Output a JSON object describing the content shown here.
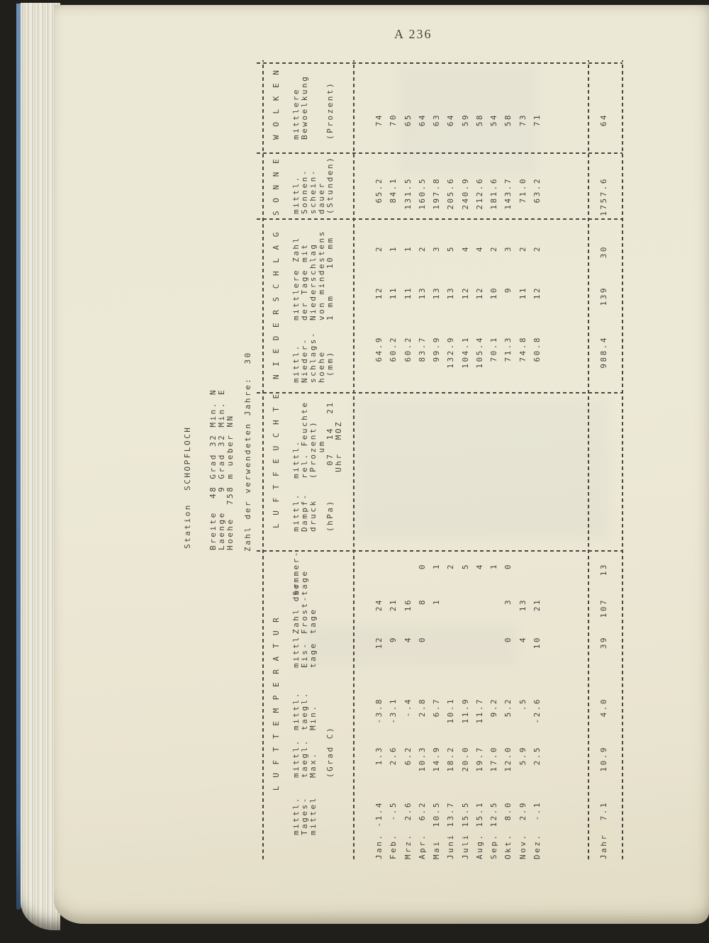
{
  "page_number": "A 236",
  "station": {
    "name_line": "Station  SCHOPFLOCH",
    "breite": "Breite  48 Grad 32 Min. N",
    "laenge": "Laenge   9 Grad 32 Min. E",
    "hoehe": "Hoehe  758 m ueber NN",
    "jahre": "Zahl der verwendeten Jahre:  30"
  },
  "table": {
    "groups": [
      "L U F T T E M P E R A T U R",
      "L U F T F E U C H T E",
      "N I E D E R S C H L A G",
      "S O N N E",
      "W O L K E N"
    ],
    "column_headers": [
      "mittl.\nTages-\nmittel",
      "mittl.\ntaegl.\nMax.\n\n(Grad C)",
      "mittl.\ntaegl.\nMin.",
      "mittl.\nEis-\ntage",
      "Zahl der\nFrost-\ntage",
      "Sommer-\ntage",
      "mittl.\nDampf-\ndruck\n\n(hPa)",
      "mittl.\nrel. Feuchte\n(Prozent)\n    um\n  07  14  21\n Uhr  MOZ",
      "mittl.\nNieder-\nschlags-\nhoehe\n (mm)",
      "mittlere Zahl\nder Tage mit\nNiederschlag\nvon mindestens\n1 mm    10 mm",
      "mittl.\nSonnen-\nschein-\ndauer\n(Stunden)",
      "mittlere\nBewoelkung\n\n\n(Prozent)"
    ],
    "rows": [
      {
        "label": "Jan.",
        "cells": [
          "-1.4",
          "1.3",
          "-3.8",
          "12",
          "24",
          "",
          "",
          "",
          "",
          "",
          "64.9",
          "12",
          "2",
          "65.2",
          "74"
        ]
      },
      {
        "label": "Feb.",
        "cells": [
          "-.5",
          "2.6",
          "-3.1",
          "9",
          "21",
          "",
          "",
          "",
          "",
          "",
          "60.2",
          "11",
          "1",
          "84.1",
          "70"
        ]
      },
      {
        "label": "Mrz.",
        "cells": [
          "2.6",
          "6.2",
          "-.4",
          "4",
          "16",
          "",
          "",
          "",
          "",
          "",
          "60.2",
          "11",
          "1",
          "131.5",
          "65"
        ]
      },
      {
        "label": "Apr.",
        "cells": [
          "6.2",
          "10.3",
          "2.8",
          "0",
          "8",
          "0",
          "",
          "",
          "",
          "",
          "83.7",
          "13",
          "2",
          "160.5",
          "64"
        ]
      },
      {
        "label": "Mai",
        "cells": [
          "10.5",
          "14.9",
          "6.7",
          "",
          "1",
          "1",
          "",
          "",
          "",
          "",
          "99.9",
          "13",
          "3",
          "197.8",
          "63"
        ]
      },
      {
        "label": "Juni",
        "cells": [
          "13.7",
          "18.2",
          "10.1",
          "",
          "",
          "2",
          "",
          "",
          "",
          "",
          "132.9",
          "13",
          "5",
          "205.6",
          "64"
        ]
      },
      {
        "label": "Juli",
        "cells": [
          "15.5",
          "20.0",
          "11.9",
          "",
          "",
          "5",
          "",
          "",
          "",
          "",
          "104.1",
          "12",
          "4",
          "240.9",
          "59"
        ]
      },
      {
        "label": "Aug.",
        "cells": [
          "15.1",
          "19.7",
          "11.7",
          "",
          "",
          "4",
          "",
          "",
          "",
          "",
          "105.4",
          "12",
          "4",
          "212.6",
          "58"
        ]
      },
      {
        "label": "Sep.",
        "cells": [
          "12.5",
          "17.0",
          "9.2",
          "",
          "",
          "1",
          "",
          "",
          "",
          "",
          "70.1",
          "10",
          "2",
          "181.6",
          "54"
        ]
      },
      {
        "label": "Okt.",
        "cells": [
          "8.0",
          "12.0",
          "5.2",
          "0",
          "3",
          "0",
          "",
          "",
          "",
          "",
          "71.3",
          "9",
          "3",
          "143.7",
          "58"
        ]
      },
      {
        "label": "Nov.",
        "cells": [
          "2.9",
          "5.9",
          ".5",
          "4",
          "13",
          "",
          "",
          "",
          "",
          "",
          "74.8",
          "11",
          "2",
          "71.0",
          "73"
        ]
      },
      {
        "label": "Dez.",
        "cells": [
          "-.1",
          "2.5",
          "-2.6",
          "10",
          "21",
          "",
          "",
          "",
          "",
          "",
          "60.8",
          "12",
          "2",
          "63.2",
          "71"
        ]
      },
      {
        "label": "Jahr",
        "cells": [
          "7.1",
          "10.9",
          "4.0",
          "39",
          "107",
          "13",
          "",
          "",
          "",
          "",
          "988.4",
          "139",
          "30",
          "1757.6",
          "64"
        ]
      }
    ]
  },
  "colors": {
    "page": "#ece8d6",
    "ink": "#45413a",
    "cover_blue": "#5b82ad",
    "surround": "#211f1b"
  }
}
